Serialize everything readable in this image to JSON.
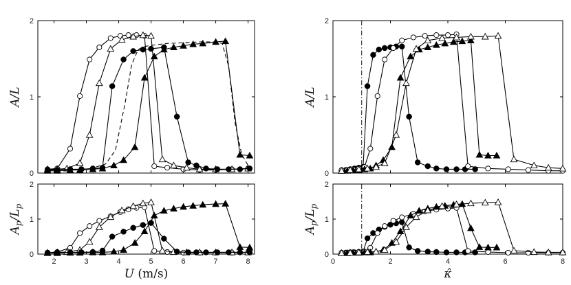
{
  "chart_data": [
    {
      "id": "tl",
      "type": "line",
      "xlim": [
        1.5,
        8.2
      ],
      "ylim": [
        0,
        2
      ],
      "xticks": [
        2,
        3,
        4,
        5,
        6,
        7,
        8
      ],
      "yticks": [
        0,
        1,
        2
      ],
      "show_xticklabels": false,
      "xlabel": "",
      "ylabel": "A/L",
      "series": [
        {
          "name": "open circles",
          "marker": "circle-open",
          "x": [
            1.8,
            2.1,
            2.5,
            2.8,
            3.1,
            3.4,
            3.75,
            4.05,
            4.3,
            4.55,
            4.8,
            5.1,
            5.5,
            6.0,
            6.5,
            7.0,
            7.5,
            8.0
          ],
          "y": [
            0.05,
            0.06,
            0.32,
            1.01,
            1.49,
            1.65,
            1.77,
            1.8,
            1.81,
            1.81,
            1.8,
            0.09,
            0.07,
            0.05,
            0.04,
            0.04,
            0.05,
            0.06
          ]
        },
        {
          "name": "open triangles",
          "marker": "triangle-open",
          "x": [
            1.8,
            2.1,
            2.4,
            2.8,
            3.1,
            3.4,
            3.75,
            4.1,
            4.45,
            4.75,
            5.0,
            5.35,
            5.7,
            6.1,
            6.5,
            7.0,
            7.5,
            8.0
          ],
          "y": [
            0.05,
            0.05,
            0.06,
            0.13,
            0.5,
            1.18,
            1.63,
            1.75,
            1.79,
            1.81,
            1.8,
            0.18,
            0.1,
            0.07,
            0.05,
            0.05,
            0.05,
            0.06
          ]
        },
        {
          "name": "filled circles",
          "marker": "circle-filled",
          "x": [
            1.8,
            2.1,
            2.5,
            2.85,
            3.2,
            3.5,
            3.8,
            4.15,
            4.45,
            4.75,
            5.0,
            5.4,
            5.8,
            6.15,
            6.4,
            6.7,
            7.05,
            7.4,
            7.75,
            8.05
          ],
          "y": [
            0.04,
            0.04,
            0.05,
            0.05,
            0.06,
            0.07,
            1.14,
            1.49,
            1.6,
            1.62,
            1.63,
            1.65,
            0.74,
            0.14,
            0.1,
            0.06,
            0.05,
            0.05,
            0.05,
            0.06
          ]
        },
        {
          "name": "filled triangles",
          "marker": "triangle-filled",
          "x": [
            1.8,
            2.1,
            2.5,
            2.8,
            3.2,
            3.5,
            3.85,
            4.15,
            4.5,
            4.8,
            5.1,
            5.4,
            5.7,
            6.0,
            6.3,
            6.6,
            7.0,
            7.3,
            7.75,
            8.05
          ],
          "y": [
            0.03,
            0.03,
            0.04,
            0.04,
            0.05,
            0.06,
            0.1,
            0.17,
            0.34,
            1.25,
            1.53,
            1.62,
            1.65,
            1.67,
            1.69,
            1.7,
            1.72,
            1.73,
            0.24,
            0.23
          ]
        },
        {
          "name": "dashed curve",
          "marker": "none",
          "dash": true,
          "x": [
            3.3,
            3.6,
            3.9,
            4.2,
            4.4,
            4.6,
            4.8,
            5.1,
            5.5,
            6.0,
            6.5,
            7.0,
            7.2,
            7.4,
            7.6,
            7.8,
            8.0
          ],
          "y": [
            0.08,
            0.12,
            0.3,
            0.92,
            1.42,
            1.62,
            1.66,
            1.68,
            1.7,
            1.71,
            1.72,
            1.72,
            1.7,
            1.4,
            0.65,
            0.25,
            0.1
          ]
        }
      ],
      "vlines": []
    },
    {
      "id": "bl",
      "type": "line",
      "xlim": [
        1.5,
        8.2
      ],
      "ylim": [
        0,
        2
      ],
      "xticks": [
        2,
        3,
        4,
        5,
        6,
        7,
        8
      ],
      "yticks": [
        0,
        1,
        2
      ],
      "show_xticklabels": true,
      "xlabel": "U (m/s)",
      "ylabel": "A_p/L_p",
      "series": [
        {
          "name": "open circles",
          "marker": "circle-open",
          "x": [
            1.8,
            2.1,
            2.5,
            2.8,
            3.1,
            3.4,
            3.75,
            4.05,
            4.3,
            4.55,
            4.8,
            5.1,
            5.5,
            6.0,
            6.5,
            7.0,
            7.5,
            8.0
          ],
          "y": [
            0.04,
            0.06,
            0.18,
            0.6,
            0.8,
            0.95,
            1.08,
            1.2,
            1.28,
            1.32,
            1.34,
            0.09,
            0.06,
            0.04,
            0.04,
            0.04,
            0.04,
            0.05
          ]
        },
        {
          "name": "open triangles",
          "marker": "triangle-open",
          "x": [
            1.8,
            2.1,
            2.4,
            2.8,
            3.1,
            3.4,
            3.75,
            4.1,
            4.45,
            4.75,
            5.0,
            5.35,
            5.7,
            6.1,
            6.5,
            7.0,
            7.5,
            8.0
          ],
          "y": [
            0.04,
            0.05,
            0.06,
            0.12,
            0.35,
            0.77,
            1.06,
            1.25,
            1.37,
            1.45,
            1.48,
            0.1,
            0.06,
            0.05,
            0.05,
            0.05,
            0.05,
            0.05
          ]
        },
        {
          "name": "filled circles",
          "marker": "circle-filled",
          "x": [
            1.8,
            2.1,
            2.5,
            2.85,
            3.2,
            3.5,
            3.8,
            4.15,
            4.45,
            4.75,
            5.0,
            5.4,
            5.8,
            6.15,
            6.4,
            6.7,
            7.05,
            7.4,
            7.75,
            8.05
          ],
          "y": [
            0.04,
            0.04,
            0.05,
            0.05,
            0.06,
            0.1,
            0.5,
            0.64,
            0.75,
            0.83,
            0.89,
            0.44,
            0.07,
            0.05,
            0.05,
            0.05,
            0.05,
            0.05,
            0.05,
            0.05
          ]
        },
        {
          "name": "filled triangles",
          "marker": "triangle-filled",
          "x": [
            1.8,
            2.1,
            2.5,
            2.8,
            3.2,
            3.5,
            3.85,
            4.15,
            4.5,
            4.8,
            5.1,
            5.4,
            5.7,
            6.0,
            6.3,
            6.6,
            7.0,
            7.3,
            7.75,
            8.05
          ],
          "y": [
            0.03,
            0.03,
            0.04,
            0.04,
            0.05,
            0.05,
            0.07,
            0.12,
            0.32,
            0.65,
            1.1,
            1.24,
            1.3,
            1.35,
            1.38,
            1.41,
            1.43,
            1.44,
            0.2,
            0.19
          ]
        }
      ],
      "vlines": []
    },
    {
      "id": "tr",
      "type": "line",
      "xlim": [
        0,
        8
      ],
      "ylim": [
        0,
        2
      ],
      "xticks": [
        0,
        2,
        4,
        6,
        8
      ],
      "yticks": [
        0,
        1,
        2
      ],
      "show_xticklabels": false,
      "xlabel": "",
      "ylabel": "A/L",
      "series": [
        {
          "name": "filled circles",
          "marker": "circle-filled",
          "x": [
            0.3,
            0.45,
            0.6,
            0.75,
            0.9,
            1.05,
            1.2,
            1.4,
            1.6,
            1.8,
            2.0,
            2.2,
            2.4,
            2.65,
            2.95,
            3.3,
            3.6,
            3.95,
            4.3,
            4.6,
            4.95
          ],
          "y": [
            0.03,
            0.04,
            0.05,
            0.06,
            0.07,
            0.08,
            1.14,
            1.55,
            1.62,
            1.64,
            1.65,
            1.66,
            1.66,
            0.74,
            0.14,
            0.09,
            0.06,
            0.05,
            0.05,
            0.05,
            0.05
          ]
        },
        {
          "name": "open circles",
          "marker": "circle-open",
          "x": [
            0.3,
            0.5,
            0.7,
            0.9,
            1.1,
            1.3,
            1.55,
            1.8,
            2.1,
            2.4,
            2.8,
            3.2,
            3.6,
            4.0,
            4.3,
            4.7,
            5.4,
            6.1,
            6.8,
            7.5,
            8.0
          ],
          "y": [
            0.04,
            0.04,
            0.05,
            0.06,
            0.08,
            0.32,
            1.01,
            1.49,
            1.64,
            1.74,
            1.78,
            1.8,
            1.81,
            1.81,
            1.82,
            0.09,
            0.06,
            0.05,
            0.04,
            0.03,
            0.03
          ]
        },
        {
          "name": "filled triangles",
          "marker": "triangle-filled",
          "x": [
            0.3,
            0.5,
            0.7,
            0.9,
            1.1,
            1.3,
            1.5,
            1.75,
            2.05,
            2.35,
            2.7,
            3.0,
            3.3,
            3.6,
            3.9,
            4.2,
            4.5,
            4.8,
            5.1,
            5.4,
            5.7
          ],
          "y": [
            0.03,
            0.03,
            0.04,
            0.04,
            0.05,
            0.06,
            0.1,
            0.17,
            0.34,
            1.25,
            1.53,
            1.62,
            1.65,
            1.68,
            1.7,
            1.72,
            1.73,
            1.74,
            0.24,
            0.23,
            0.23
          ]
        },
        {
          "name": "open triangles",
          "marker": "triangle-open",
          "x": [
            0.3,
            0.6,
            0.9,
            1.2,
            1.5,
            1.8,
            2.2,
            2.55,
            2.9,
            3.3,
            3.8,
            4.3,
            4.8,
            5.3,
            5.75,
            6.3,
            7.0,
            7.5,
            8.0
          ],
          "y": [
            0.03,
            0.04,
            0.05,
            0.06,
            0.08,
            0.13,
            0.5,
            1.18,
            1.63,
            1.74,
            1.77,
            1.78,
            1.79,
            1.79,
            1.8,
            0.18,
            0.1,
            0.07,
            0.06
          ]
        }
      ],
      "vlines": [
        {
          "x": 1.0,
          "style": "dashdot"
        }
      ]
    },
    {
      "id": "br",
      "type": "line",
      "xlim": [
        0,
        8
      ],
      "ylim": [
        0,
        2
      ],
      "xticks": [
        0,
        2,
        4,
        6,
        8
      ],
      "yticks": [
        0,
        1,
        2
      ],
      "show_xticklabels": true,
      "xlabel": "κ̂",
      "ylabel": "A_p/L_p",
      "series": [
        {
          "name": "filled circles",
          "marker": "circle-filled",
          "x": [
            0.3,
            0.45,
            0.6,
            0.75,
            0.9,
            1.05,
            1.2,
            1.4,
            1.6,
            1.8,
            2.0,
            2.2,
            2.4,
            2.65,
            2.95,
            3.3,
            3.6,
            3.95,
            4.3,
            4.6,
            4.95
          ],
          "y": [
            0.03,
            0.04,
            0.05,
            0.05,
            0.06,
            0.07,
            0.45,
            0.6,
            0.7,
            0.78,
            0.84,
            0.88,
            0.91,
            0.19,
            0.09,
            0.07,
            0.06,
            0.05,
            0.05,
            0.05,
            0.05
          ]
        },
        {
          "name": "open circles",
          "marker": "circle-open",
          "x": [
            0.3,
            0.5,
            0.7,
            0.9,
            1.1,
            1.3,
            1.55,
            1.8,
            2.1,
            2.4,
            2.8,
            3.2,
            3.6,
            4.0,
            4.3,
            4.7,
            5.4,
            6.1,
            6.8,
            7.5,
            8.0
          ],
          "y": [
            0.04,
            0.04,
            0.05,
            0.06,
            0.07,
            0.18,
            0.6,
            0.8,
            0.95,
            1.05,
            1.15,
            1.22,
            1.27,
            1.3,
            1.32,
            0.09,
            0.06,
            0.04,
            0.04,
            0.04,
            0.04
          ]
        },
        {
          "name": "filled triangles",
          "marker": "triangle-filled",
          "x": [
            0.3,
            0.5,
            0.7,
            0.9,
            1.1,
            1.3,
            1.5,
            1.75,
            2.05,
            2.35,
            2.7,
            3.0,
            3.3,
            3.6,
            3.9,
            4.2,
            4.5,
            4.8,
            5.1,
            5.4,
            5.7
          ],
          "y": [
            0.03,
            0.03,
            0.04,
            0.04,
            0.05,
            0.05,
            0.07,
            0.12,
            0.32,
            0.65,
            1.1,
            1.24,
            1.3,
            1.35,
            1.38,
            1.41,
            1.43,
            0.74,
            0.2,
            0.19,
            0.19
          ]
        },
        {
          "name": "open triangles",
          "marker": "triangle-open",
          "x": [
            0.3,
            0.6,
            0.9,
            1.2,
            1.5,
            1.8,
            2.2,
            2.55,
            2.9,
            3.3,
            3.8,
            4.3,
            4.8,
            5.3,
            5.75,
            6.3,
            7.0,
            7.5,
            8.0
          ],
          "y": [
            0.03,
            0.04,
            0.05,
            0.06,
            0.07,
            0.12,
            0.35,
            0.77,
            1.06,
            1.25,
            1.37,
            1.42,
            1.45,
            1.47,
            1.48,
            0.1,
            0.06,
            0.05,
            0.05
          ]
        }
      ],
      "vlines": [
        {
          "x": 1.0,
          "style": "dashdot"
        }
      ]
    }
  ]
}
